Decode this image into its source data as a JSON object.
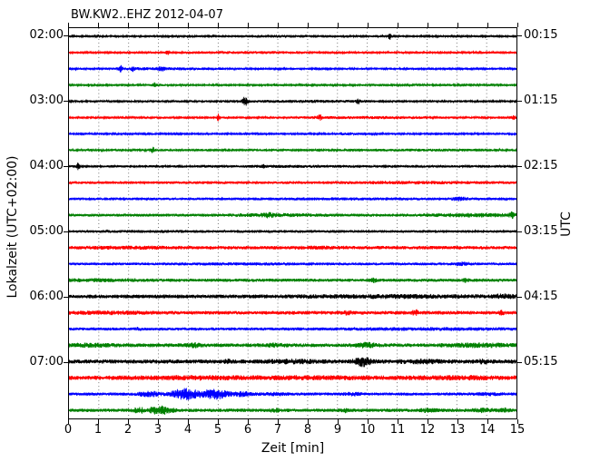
{
  "title": "BW.KW2..EHZ 2012-04-07",
  "axes": {
    "xlabel": "Zeit  [min]",
    "ylabel_left": "Lokalzeit (UTC+02:00)",
    "ylabel_right": "UTC",
    "x_ticks": [
      "0",
      "1",
      "2",
      "3",
      "4",
      "5",
      "6",
      "7",
      "8",
      "9",
      "10",
      "11",
      "12",
      "13",
      "14",
      "15"
    ],
    "y_ticks_left": [
      "02:00",
      "03:00",
      "04:00",
      "05:00",
      "06:00",
      "07:00"
    ],
    "y_ticks_right": [
      "00:15",
      "01:15",
      "02:15",
      "03:15",
      "04:15",
      "05:15"
    ]
  },
  "chart_data": {
    "type": "line",
    "subtype": "seismogram-dayplot",
    "x_range_minutes": [
      0,
      15
    ],
    "minutes_per_row": 15,
    "rows_count": 24,
    "grid": "vertical-dotted-per-minute",
    "grid_color": "#555555",
    "frame_color": "#000000",
    "hour_label_rows": [
      0,
      4,
      8,
      12,
      16,
      20
    ],
    "trace_color_cycle": [
      "#000000",
      "#ff0000",
      "#0000ff",
      "#008000"
    ],
    "rows": [
      {
        "color": "#000000",
        "noise": 1.1,
        "events": [
          {
            "t": 10.75,
            "w": 0.06,
            "a": 4.0
          },
          {
            "t": 7.5,
            "w": 2.0,
            "a": 0.5
          },
          {
            "t": 0.15,
            "w": 0.1,
            "a": 1.2
          }
        ]
      },
      {
        "color": "#ff0000",
        "noise": 1.1,
        "events": [
          {
            "t": 2.0,
            "w": 0.06,
            "a": 2.0
          },
          {
            "t": 3.3,
            "w": 0.06,
            "a": 2.6
          },
          {
            "t": 6.0,
            "w": 2.0,
            "a": 0.6
          }
        ]
      },
      {
        "color": "#0000ff",
        "noise": 1.1,
        "events": [
          {
            "t": 1.72,
            "w": 0.08,
            "a": 3.0
          },
          {
            "t": 2.15,
            "w": 0.06,
            "a": 2.0
          },
          {
            "t": 3.1,
            "w": 0.12,
            "a": 1.4
          },
          {
            "t": 3.0,
            "w": 1.5,
            "a": 0.7
          }
        ]
      },
      {
        "color": "#008000",
        "noise": 1.1,
        "events": [
          {
            "t": 0.65,
            "w": 0.05,
            "a": 1.2
          },
          {
            "t": 2.88,
            "w": 0.06,
            "a": 2.6
          },
          {
            "t": 6.9,
            "w": 0.08,
            "a": 1.2
          }
        ]
      },
      {
        "color": "#000000",
        "noise": 1.2,
        "events": [
          {
            "t": 5.9,
            "w": 0.09,
            "a": 4.3
          },
          {
            "t": 9.7,
            "w": 0.06,
            "a": 2.2
          },
          {
            "t": 8.0,
            "w": 2.0,
            "a": 0.6
          }
        ]
      },
      {
        "color": "#ff0000",
        "noise": 1.2,
        "events": [
          {
            "t": 5.0,
            "w": 0.05,
            "a": 4.3
          },
          {
            "t": 8.4,
            "w": 0.07,
            "a": 2.6
          },
          {
            "t": 14.9,
            "w": 0.07,
            "a": 2.6
          },
          {
            "t": 10.0,
            "w": 2.0,
            "a": 0.5
          }
        ]
      },
      {
        "color": "#0000ff",
        "noise": 1.1,
        "events": [
          {
            "t": 9.3,
            "w": 0.3,
            "a": 0.7
          }
        ]
      },
      {
        "color": "#008000",
        "noise": 1.2,
        "events": [
          {
            "t": 2.1,
            "w": 0.06,
            "a": 1.5
          },
          {
            "t": 2.8,
            "w": 0.07,
            "a": 2.8
          },
          {
            "t": 12.0,
            "w": 2.0,
            "a": 0.4
          }
        ]
      },
      {
        "color": "#000000",
        "noise": 1.3,
        "events": [
          {
            "t": 0.3,
            "w": 0.07,
            "a": 3.0
          },
          {
            "t": 6.5,
            "w": 0.05,
            "a": 1.4
          },
          {
            "t": 7.0,
            "w": 3.0,
            "a": 0.4
          }
        ]
      },
      {
        "color": "#ff0000",
        "noise": 1.5,
        "events": [
          {
            "t": 11.5,
            "w": 2.0,
            "a": 0.6
          }
        ]
      },
      {
        "color": "#0000ff",
        "noise": 1.4,
        "events": [
          {
            "t": 13.1,
            "w": 0.25,
            "a": 1.4
          },
          {
            "t": 9.0,
            "w": 3.0,
            "a": 0.4
          }
        ]
      },
      {
        "color": "#008000",
        "noise": 1.6,
        "events": [
          {
            "t": 6.7,
            "w": 0.2,
            "a": 1.2
          },
          {
            "t": 7.0,
            "w": 1.5,
            "a": 0.7
          },
          {
            "t": 13.5,
            "w": 1.5,
            "a": 1.0
          },
          {
            "t": 14.85,
            "w": 0.08,
            "a": 3.0
          }
        ]
      },
      {
        "color": "#000000",
        "noise": 1.4,
        "events": [
          {
            "t": 3.0,
            "w": 2.0,
            "a": 0.3
          }
        ]
      },
      {
        "color": "#ff0000",
        "noise": 1.9,
        "events": [
          {
            "t": 2.0,
            "w": 1.5,
            "a": 0.4
          },
          {
            "t": 8.5,
            "w": 1.0,
            "a": 0.4
          }
        ]
      },
      {
        "color": "#0000ff",
        "noise": 1.5,
        "events": [
          {
            "t": 13.2,
            "w": 0.3,
            "a": 1.2
          },
          {
            "t": 6.0,
            "w": 2.0,
            "a": 0.3
          }
        ]
      },
      {
        "color": "#008000",
        "noise": 1.8,
        "events": [
          {
            "t": 10.2,
            "w": 0.1,
            "a": 1.7
          },
          {
            "t": 13.3,
            "w": 0.1,
            "a": 1.2
          },
          {
            "t": 1.0,
            "w": 1.5,
            "a": 0.5
          }
        ]
      },
      {
        "color": "#000000",
        "noise": 2.1,
        "events": [
          {
            "t": 11.0,
            "w": 3.0,
            "a": 0.7
          },
          {
            "t": 14.6,
            "w": 0.4,
            "a": 1.1
          }
        ]
      },
      {
        "color": "#ff0000",
        "noise": 2.0,
        "events": [
          {
            "t": 1.2,
            "w": 1.5,
            "a": 0.7
          },
          {
            "t": 9.3,
            "w": 0.15,
            "a": 1.4
          },
          {
            "t": 11.6,
            "w": 0.09,
            "a": 2.8
          },
          {
            "t": 14.5,
            "w": 0.07,
            "a": 1.7
          }
        ]
      },
      {
        "color": "#0000ff",
        "noise": 1.7,
        "events": [
          {
            "t": 2.3,
            "w": 0.1,
            "a": 1.1
          },
          {
            "t": 12.0,
            "w": 3.0,
            "a": 0.5
          }
        ]
      },
      {
        "color": "#008000",
        "noise": 2.1,
        "events": [
          {
            "t": 0.7,
            "w": 0.8,
            "a": 0.9
          },
          {
            "t": 4.2,
            "w": 0.2,
            "a": 1.4
          },
          {
            "t": 6.8,
            "w": 0.4,
            "a": 0.9
          },
          {
            "t": 10.0,
            "w": 0.3,
            "a": 1.7
          },
          {
            "t": 13.8,
            "w": 1.0,
            "a": 1.1
          }
        ]
      },
      {
        "color": "#000000",
        "noise": 2.3,
        "events": [
          {
            "t": 5.3,
            "w": 0.1,
            "a": 1.1
          },
          {
            "t": 7.5,
            "w": 0.8,
            "a": 1.0
          },
          {
            "t": 9.85,
            "w": 0.25,
            "a": 4.2
          },
          {
            "t": 11.8,
            "w": 0.8,
            "a": 0.9
          },
          {
            "t": 13.9,
            "w": 0.15,
            "a": 1.4
          }
        ]
      },
      {
        "color": "#ff0000",
        "noise": 2.4,
        "events": [
          {
            "t": 4.0,
            "w": 2.0,
            "a": 0.7
          },
          {
            "t": 8.0,
            "w": 2.0,
            "a": 0.5
          },
          {
            "t": 13.0,
            "w": 1.5,
            "a": 0.7
          }
        ]
      },
      {
        "color": "#0000ff",
        "noise": 1.7,
        "events": [
          {
            "t": 2.7,
            "w": 0.35,
            "a": 2.2
          },
          {
            "t": 3.9,
            "w": 0.45,
            "a": 5.3
          },
          {
            "t": 4.9,
            "w": 0.4,
            "a": 4.8
          },
          {
            "t": 5.8,
            "w": 0.3,
            "a": 1.8
          },
          {
            "t": 6.8,
            "w": 0.5,
            "a": 0.9
          },
          {
            "t": 9.5,
            "w": 0.3,
            "a": 1.1
          },
          {
            "t": 14.0,
            "w": 0.5,
            "a": 0.7
          }
        ]
      },
      {
        "color": "#008000",
        "noise": 1.9,
        "events": [
          {
            "t": 2.35,
            "w": 0.15,
            "a": 2.8
          },
          {
            "t": 2.8,
            "w": 0.1,
            "a": 2.0
          },
          {
            "t": 3.15,
            "w": 0.3,
            "a": 3.8
          },
          {
            "t": 6.9,
            "w": 0.15,
            "a": 1.4
          },
          {
            "t": 9.3,
            "w": 0.2,
            "a": 1.4
          },
          {
            "t": 12.0,
            "w": 0.3,
            "a": 1.1
          },
          {
            "t": 13.9,
            "w": 0.3,
            "a": 1.4
          },
          {
            "t": 14.6,
            "w": 0.2,
            "a": 1.4
          }
        ]
      }
    ]
  }
}
